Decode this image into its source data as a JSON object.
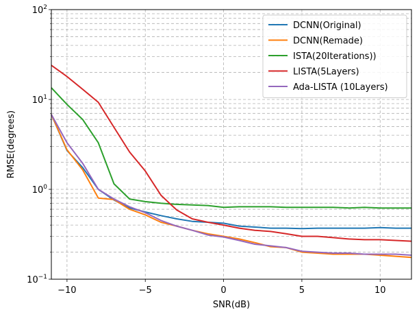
{
  "chart_data": {
    "type": "line",
    "title": "",
    "xlabel": "SNR(dB)",
    "ylabel": "RMSE(degrees)",
    "xlim": [
      -11,
      12
    ],
    "ylim": [
      0.1,
      100
    ],
    "yscale": "log",
    "grid": true,
    "legend_position": "top-right",
    "x": [
      -11,
      -10,
      -9,
      -8,
      -7,
      -6,
      -5,
      -4,
      -3,
      -2,
      -1,
      0,
      1,
      2,
      3,
      4,
      5,
      6,
      7,
      8,
      9,
      10,
      11,
      12
    ],
    "x_ticks": [
      -10,
      -5,
      0,
      5,
      10
    ],
    "x_tick_labels": [
      "−10",
      "−5",
      "0",
      "5",
      "10"
    ],
    "y_ticks": [
      0.1,
      1,
      10,
      100
    ],
    "y_tick_labels": [
      {
        "base": "10",
        "exp": "−1"
      },
      {
        "base": "10",
        "exp": "0"
      },
      {
        "base": "10",
        "exp": "1"
      },
      {
        "base": "10",
        "exp": "2"
      }
    ],
    "series": [
      {
        "name": "DCNN(Original)",
        "color": "#1f77b4",
        "values": [
          6.8,
          2.7,
          1.75,
          1.0,
          0.76,
          0.62,
          0.56,
          0.51,
          0.47,
          0.44,
          0.43,
          0.42,
          0.39,
          0.38,
          0.37,
          0.37,
          0.365,
          0.37,
          0.37,
          0.37,
          0.37,
          0.375,
          0.37,
          0.37
        ]
      },
      {
        "name": "DCNN(Remade)",
        "color": "#ff7f0e",
        "values": [
          6.8,
          2.75,
          1.65,
          0.8,
          0.77,
          0.6,
          0.52,
          0.43,
          0.39,
          0.35,
          0.32,
          0.3,
          0.28,
          0.255,
          0.23,
          0.225,
          0.2,
          0.195,
          0.19,
          0.19,
          0.19,
          0.185,
          0.18,
          0.175
        ]
      },
      {
        "name": "ISTA(20Iterations))",
        "color": "#2ca02c",
        "values": [
          13.5,
          8.8,
          6.0,
          3.3,
          1.15,
          0.78,
          0.73,
          0.7,
          0.68,
          0.67,
          0.66,
          0.63,
          0.64,
          0.64,
          0.64,
          0.63,
          0.63,
          0.63,
          0.63,
          0.62,
          0.63,
          0.62,
          0.62,
          0.62
        ]
      },
      {
        "name": "LISTA(5Layers)",
        "color": "#d62728",
        "values": [
          24.0,
          18.0,
          13.0,
          9.3,
          4.9,
          2.6,
          1.6,
          0.86,
          0.59,
          0.47,
          0.43,
          0.4,
          0.37,
          0.35,
          0.34,
          0.32,
          0.3,
          0.3,
          0.29,
          0.28,
          0.275,
          0.275,
          0.27,
          0.265
        ]
      },
      {
        "name": "Ada-LISTA (10Layers)",
        "color": "#9467bd",
        "values": [
          6.8,
          3.3,
          1.95,
          1.0,
          0.78,
          0.64,
          0.55,
          0.45,
          0.39,
          0.35,
          0.31,
          0.295,
          0.27,
          0.245,
          0.235,
          0.225,
          0.205,
          0.2,
          0.195,
          0.195,
          0.19,
          0.19,
          0.19,
          0.185
        ]
      }
    ]
  }
}
